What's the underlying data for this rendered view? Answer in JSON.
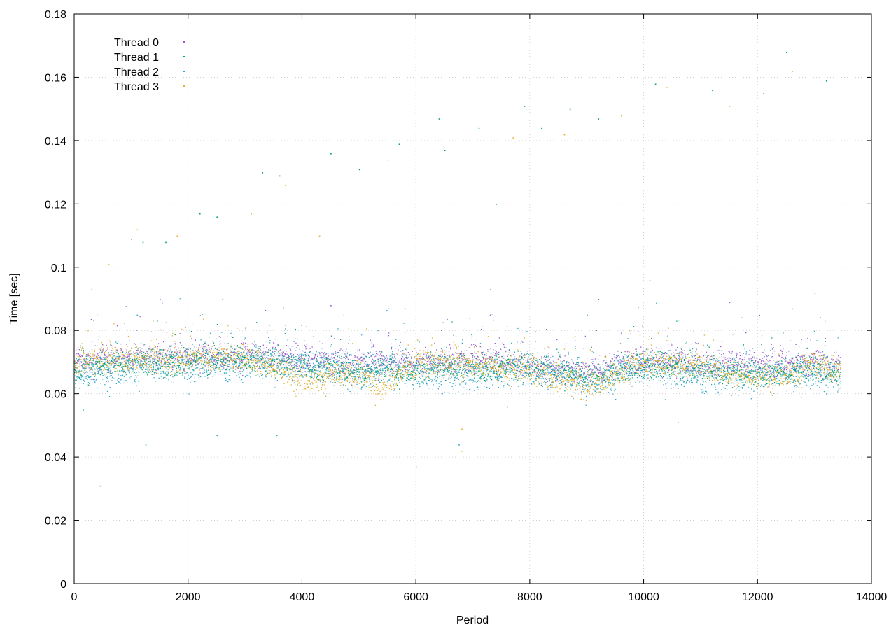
{
  "chart_data": {
    "type": "scatter",
    "xlabel": "Period",
    "ylabel": "Time [sec]",
    "xlim": [
      0,
      14000
    ],
    "ylim": [
      0,
      0.18
    ],
    "x_ticks": [
      "0",
      "2000",
      "4000",
      "6000",
      "8000",
      "10000",
      "12000",
      "14000"
    ],
    "y_ticks": [
      "0",
      "0.02",
      "0.04",
      "0.06",
      "0.08",
      "0.1",
      "0.12",
      "0.14",
      "0.16",
      "0.18"
    ],
    "grid": true,
    "legend_position": "top-left",
    "series": [
      {
        "name": "Thread 0",
        "color": "#9b59d0",
        "trend": [
          [
            0,
            0.07
          ],
          [
            1000,
            0.072
          ],
          [
            2000,
            0.072
          ],
          [
            3000,
            0.072
          ],
          [
            4000,
            0.071
          ],
          [
            5000,
            0.07
          ],
          [
            6000,
            0.07
          ],
          [
            7000,
            0.071
          ],
          [
            8000,
            0.069
          ],
          [
            9000,
            0.067
          ],
          [
            10000,
            0.071
          ],
          [
            11000,
            0.07
          ],
          [
            12000,
            0.069
          ],
          [
            13000,
            0.07
          ],
          [
            13450,
            0.069
          ]
        ],
        "spread": 0.003,
        "outliers": [
          [
            300,
            0.093
          ],
          [
            1500,
            0.09
          ],
          [
            2600,
            0.09
          ],
          [
            4500,
            0.088
          ],
          [
            7300,
            0.093
          ],
          [
            9200,
            0.09
          ],
          [
            11500,
            0.089
          ],
          [
            13000,
            0.092
          ]
        ]
      },
      {
        "name": "Thread 1",
        "color": "#009e73",
        "trend": [
          [
            0,
            0.068
          ],
          [
            1000,
            0.07
          ],
          [
            2000,
            0.07
          ],
          [
            3000,
            0.071
          ],
          [
            4000,
            0.069
          ],
          [
            5000,
            0.068
          ],
          [
            6000,
            0.068
          ],
          [
            7000,
            0.068
          ],
          [
            8000,
            0.069
          ],
          [
            9000,
            0.065
          ],
          [
            10000,
            0.069
          ],
          [
            11000,
            0.068
          ],
          [
            12000,
            0.066
          ],
          [
            13000,
            0.068
          ],
          [
            13450,
            0.067
          ]
        ],
        "spread": 0.003,
        "outliers": [
          [
            1000,
            0.109
          ],
          [
            1200,
            0.108
          ],
          [
            1600,
            0.108
          ],
          [
            2200,
            0.117
          ],
          [
            2500,
            0.116
          ],
          [
            3300,
            0.13
          ],
          [
            3600,
            0.129
          ],
          [
            4500,
            0.136
          ],
          [
            5000,
            0.131
          ],
          [
            5700,
            0.139
          ],
          [
            6400,
            0.147
          ],
          [
            6500,
            0.137
          ],
          [
            7100,
            0.144
          ],
          [
            7400,
            0.12
          ],
          [
            7900,
            0.151
          ],
          [
            8200,
            0.144
          ],
          [
            8700,
            0.15
          ],
          [
            9200,
            0.147
          ],
          [
            10200,
            0.158
          ],
          [
            11200,
            0.156
          ],
          [
            12100,
            0.155
          ],
          [
            12500,
            0.168
          ],
          [
            13200,
            0.159
          ]
        ]
      },
      {
        "name": "Thread 2",
        "color": "#2ea7c9",
        "trend": [
          [
            0,
            0.066
          ],
          [
            1000,
            0.069
          ],
          [
            2000,
            0.069
          ],
          [
            3000,
            0.07
          ],
          [
            4000,
            0.069
          ],
          [
            5000,
            0.067
          ],
          [
            6000,
            0.067
          ],
          [
            7000,
            0.066
          ],
          [
            8000,
            0.068
          ],
          [
            9000,
            0.065
          ],
          [
            10000,
            0.068
          ],
          [
            11000,
            0.066
          ],
          [
            12000,
            0.066
          ],
          [
            13000,
            0.067
          ],
          [
            13450,
            0.066
          ]
        ],
        "spread": 0.004,
        "outliers": [
          [
            150,
            0.055
          ],
          [
            450,
            0.031
          ],
          [
            1250,
            0.044
          ],
          [
            2500,
            0.047
          ],
          [
            3550,
            0.047
          ],
          [
            6000,
            0.037
          ],
          [
            6750,
            0.044
          ],
          [
            7600,
            0.056
          ],
          [
            1100,
            0.085
          ],
          [
            5800,
            0.087
          ],
          [
            9000,
            0.085
          ],
          [
            12600,
            0.087
          ]
        ]
      },
      {
        "name": "Thread 3",
        "color": "#e0b030",
        "trend": [
          [
            0,
            0.07
          ],
          [
            1000,
            0.071
          ],
          [
            2000,
            0.071
          ],
          [
            3000,
            0.072
          ],
          [
            4000,
            0.065
          ],
          [
            5000,
            0.066
          ],
          [
            5400,
            0.062
          ],
          [
            6000,
            0.07
          ],
          [
            7000,
            0.069
          ],
          [
            8000,
            0.068
          ],
          [
            9000,
            0.062
          ],
          [
            10000,
            0.07
          ],
          [
            11000,
            0.069
          ],
          [
            12000,
            0.065
          ],
          [
            13000,
            0.069
          ],
          [
            13450,
            0.067
          ]
        ],
        "spread": 0.003,
        "outliers": [
          [
            600,
            0.101
          ],
          [
            1100,
            0.112
          ],
          [
            1800,
            0.11
          ],
          [
            3100,
            0.117
          ],
          [
            3700,
            0.126
          ],
          [
            4300,
            0.11
          ],
          [
            5500,
            0.134
          ],
          [
            6800,
            0.042
          ],
          [
            6800,
            0.049
          ],
          [
            7700,
            0.141
          ],
          [
            8600,
            0.142
          ],
          [
            9600,
            0.148
          ],
          [
            10100,
            0.096
          ],
          [
            10400,
            0.157
          ],
          [
            10600,
            0.051
          ],
          [
            11500,
            0.151
          ],
          [
            12600,
            0.162
          ]
        ]
      }
    ]
  }
}
